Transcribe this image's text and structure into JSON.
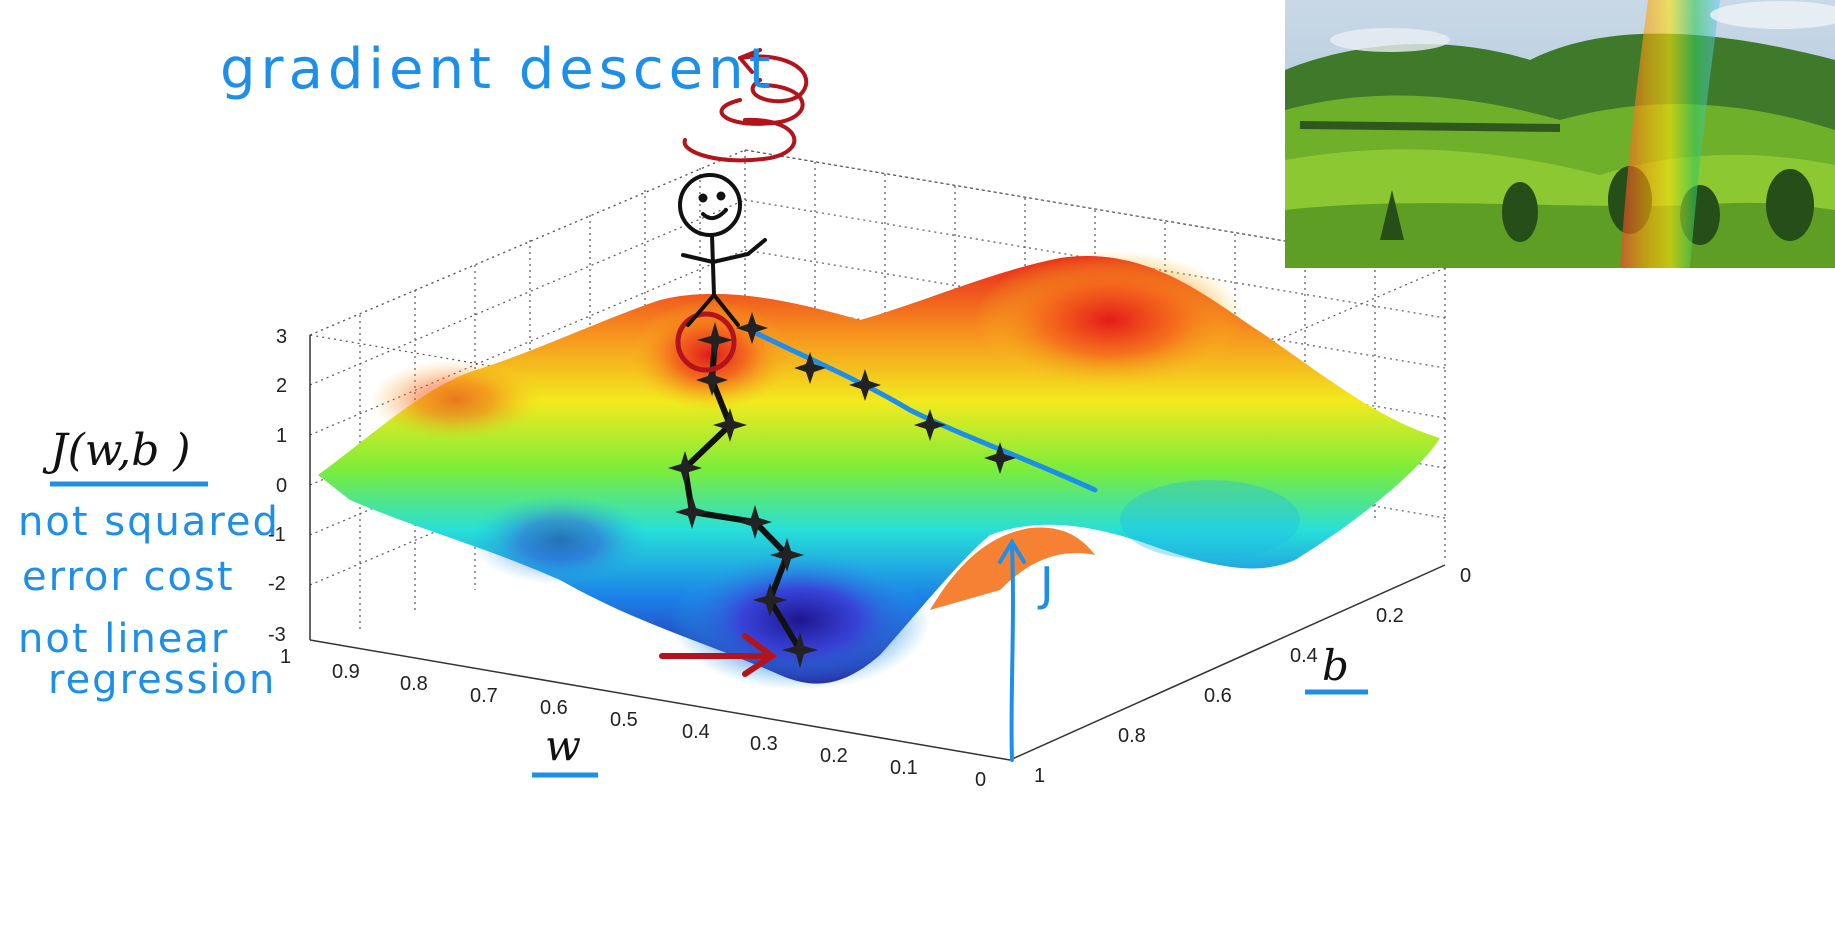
{
  "annotations": {
    "title": "gradient descent",
    "cost_label": "J(w,b )",
    "note_1_line_1": "not squared",
    "note_1_line_2": "error cost",
    "note_2_line_1": "not linear",
    "note_2_line_2": "regression",
    "w_label": "w",
    "b_label": "b",
    "j_arrow_label": "J"
  },
  "axes": {
    "z_ticks": [
      "3",
      "2",
      "1",
      "0",
      "-1",
      "-2",
      "-3"
    ],
    "w_ticks": [
      "1",
      "0.9",
      "0.8",
      "0.7",
      "0.6",
      "0.5",
      "0.4",
      "0.3",
      "0.2",
      "0.1",
      "0"
    ],
    "b_ticks": [
      "0",
      "0.2",
      "0.4",
      "0.6",
      "0.8",
      "1"
    ]
  },
  "colors": {
    "annotation_blue": "#1e8fe8",
    "annotation_red": "#b3141b",
    "path_black": "#111111",
    "surface_peak": "#e8221c",
    "surface_valley": "#2a1b9e"
  },
  "icons": {
    "stick_figure": "stick-figure-icon",
    "descent_star": "star-marker-icon",
    "spin_scribble": "spin-scribble-icon"
  },
  "photo": {
    "subject": "landscape-photo"
  }
}
